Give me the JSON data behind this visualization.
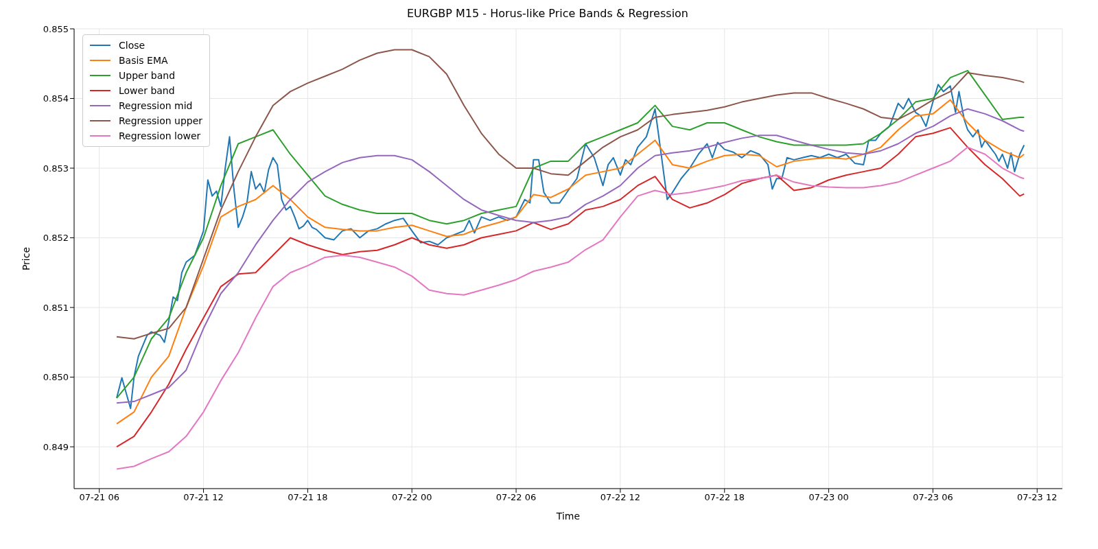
{
  "chart_data": {
    "type": "line",
    "title": "EURGBP M15 - Horus-like Price Bands & Regression",
    "xlabel": "Time",
    "ylabel": "Price",
    "xlim": [
      "--07-21T04:33",
      "--07-23T13:27"
    ],
    "ylim": [
      0.8484,
      0.855
    ],
    "xticks": [
      {
        "value": "--07-21T06:00",
        "label": "07-21 06"
      },
      {
        "value": "--07-21T12:00",
        "label": "07-21 12"
      },
      {
        "value": "--07-21T18:00",
        "label": "07-21 18"
      },
      {
        "value": "--07-22T00:00",
        "label": "07-22 00"
      },
      {
        "value": "--07-22T06:00",
        "label": "07-22 06"
      },
      {
        "value": "--07-22T12:00",
        "label": "07-22 12"
      },
      {
        "value": "--07-22T18:00",
        "label": "07-22 18"
      },
      {
        "value": "--07-23T00:00",
        "label": "07-23 00"
      },
      {
        "value": "--07-23T06:00",
        "label": "07-23 06"
      },
      {
        "value": "--07-23T12:00",
        "label": "07-23 12"
      }
    ],
    "yticks": [
      {
        "value": 0.849,
        "label": "0.849"
      },
      {
        "value": 0.85,
        "label": "0.850"
      },
      {
        "value": 0.851,
        "label": "0.851"
      },
      {
        "value": 0.852,
        "label": "0.852"
      },
      {
        "value": 0.853,
        "label": "0.853"
      },
      {
        "value": 0.854,
        "label": "0.854"
      },
      {
        "value": 0.855,
        "label": "0.855"
      }
    ],
    "grid": true,
    "legend": "top left",
    "x": [
      "--07-21T07:00",
      "--07-21T08:00",
      "--07-21T09:00",
      "--07-21T10:00",
      "--07-21T11:00",
      "--07-21T12:00",
      "--07-21T13:00",
      "--07-21T14:00",
      "--07-21T15:00",
      "--07-21T16:00",
      "--07-21T17:00",
      "--07-21T18:00",
      "--07-21T19:00",
      "--07-21T20:00",
      "--07-21T21:00",
      "--07-21T22:00",
      "--07-21T23:00",
      "--07-22T00:00",
      "--07-22T01:00",
      "--07-22T02:00",
      "--07-22T03:00",
      "--07-22T04:00",
      "--07-22T05:00",
      "--07-22T06:00",
      "--07-22T07:00",
      "--07-22T08:00",
      "--07-22T09:00",
      "--07-22T10:00",
      "--07-22T11:00",
      "--07-22T12:00",
      "--07-22T13:00",
      "--07-22T14:00",
      "--07-22T15:00",
      "--07-22T16:00",
      "--07-22T17:00",
      "--07-22T18:00",
      "--07-22T19:00",
      "--07-22T20:00",
      "--07-22T21:00",
      "--07-22T22:00",
      "--07-22T23:00",
      "--07-23T00:00",
      "--07-23T01:00",
      "--07-23T02:00",
      "--07-23T03:00",
      "--07-23T04:00",
      "--07-23T05:00",
      "--07-23T06:00",
      "--07-23T07:00",
      "--07-23T08:00",
      "--07-23T09:00",
      "--07-23T10:00",
      "--07-23T11:00",
      "--07-23T11:15"
    ],
    "series": [
      {
        "name": "Close",
        "color": "#1f77b4",
        "x": [
          "--07-21T07:00",
          "--07-21T07:18",
          "--07-21T07:48",
          "--07-21T08:00",
          "--07-21T08:15",
          "--07-21T08:45",
          "--07-21T09:00",
          "--07-21T09:30",
          "--07-21T09:45",
          "--07-21T10:00",
          "--07-21T10:15",
          "--07-21T10:30",
          "--07-21T10:45",
          "--07-21T11:00",
          "--07-21T11:30",
          "--07-21T12:00",
          "--07-21T12:15",
          "--07-21T12:30",
          "--07-21T12:45",
          "--07-21T13:00",
          "--07-21T13:15",
          "--07-21T13:30",
          "--07-21T13:45",
          "--07-21T14:00",
          "--07-21T14:15",
          "--07-21T14:30",
          "--07-21T14:45",
          "--07-21T15:00",
          "--07-21T15:15",
          "--07-21T15:30",
          "--07-21T15:45",
          "--07-21T16:00",
          "--07-21T16:15",
          "--07-21T16:30",
          "--07-21T16:45",
          "--07-21T17:00",
          "--07-21T17:15",
          "--07-21T17:30",
          "--07-21T17:45",
          "--07-21T18:00",
          "--07-21T18:15",
          "--07-21T18:30",
          "--07-21T19:00",
          "--07-21T19:30",
          "--07-21T20:00",
          "--07-21T20:30",
          "--07-21T21:00",
          "--07-21T21:30",
          "--07-21T22:00",
          "--07-21T22:30",
          "--07-21T23:00",
          "--07-21T23:30",
          "--07-22T00:00",
          "--07-22T00:30",
          "--07-22T01:00",
          "--07-22T01:30",
          "--07-22T02:00",
          "--07-22T02:30",
          "--07-22T03:00",
          "--07-22T03:18",
          "--07-22T03:36",
          "--07-22T04:00",
          "--07-22T04:30",
          "--07-22T05:00",
          "--07-22T05:30",
          "--07-22T06:00",
          "--07-22T06:30",
          "--07-22T06:48",
          "--07-22T07:00",
          "--07-22T07:18",
          "--07-22T07:36",
          "--07-22T08:00",
          "--07-22T08:30",
          "--07-22T09:00",
          "--07-22T09:30",
          "--07-22T10:00",
          "--07-22T10:30",
          "--07-22T11:00",
          "--07-22T11:18",
          "--07-22T11:36",
          "--07-22T12:00",
          "--07-22T12:18",
          "--07-22T12:36",
          "--07-22T13:00",
          "--07-22T13:30",
          "--07-22T14:00",
          "--07-22T14:18",
          "--07-22T14:42",
          "--07-22T15:00",
          "--07-22T15:30",
          "--07-22T16:00",
          "--07-22T16:30",
          "--07-22T17:00",
          "--07-22T17:18",
          "--07-22T17:36",
          "--07-22T18:00",
          "--07-22T18:30",
          "--07-22T19:00",
          "--07-22T19:30",
          "--07-22T20:00",
          "--07-22T20:30",
          "--07-22T20:45",
          "--07-22T21:00",
          "--07-22T21:18",
          "--07-22T21:36",
          "--07-22T22:00",
          "--07-22T22:30",
          "--07-22T23:00",
          "--07-22T23:30",
          "--07-23T00:00",
          "--07-23T00:30",
          "--07-23T01:00",
          "--07-23T01:30",
          "--07-23T02:00",
          "--07-23T02:18",
          "--07-23T02:42",
          "--07-23T03:00",
          "--07-23T03:30",
          "--07-23T04:00",
          "--07-23T04:18",
          "--07-23T04:36",
          "--07-23T05:00",
          "--07-23T05:18",
          "--07-23T05:36",
          "--07-23T06:00",
          "--07-23T06:18",
          "--07-23T06:36",
          "--07-23T07:00",
          "--07-23T07:18",
          "--07-23T07:30",
          "--07-23T07:48",
          "--07-23T08:00",
          "--07-23T08:18",
          "--07-23T08:36",
          "--07-23T08:48",
          "--07-23T09:00",
          "--07-23T09:18",
          "--07-23T09:36",
          "--07-23T09:48",
          "--07-23T10:00",
          "--07-23T10:18",
          "--07-23T10:30",
          "--07-23T10:42",
          "--07-23T11:00",
          "--07-23T11:15"
        ],
        "values": [
          0.8497,
          0.84999,
          0.84955,
          0.85,
          0.8503,
          0.8506,
          0.85065,
          0.8506,
          0.8505,
          0.8508,
          0.85115,
          0.8511,
          0.8515,
          0.85165,
          0.85175,
          0.8521,
          0.85283,
          0.8526,
          0.85267,
          0.85245,
          0.853,
          0.85345,
          0.8527,
          0.85215,
          0.8523,
          0.8525,
          0.85295,
          0.8527,
          0.85278,
          0.85265,
          0.85298,
          0.85315,
          0.85305,
          0.85255,
          0.8524,
          0.85245,
          0.8523,
          0.85213,
          0.85217,
          0.85225,
          0.85215,
          0.85212,
          0.852,
          0.85197,
          0.8521,
          0.85213,
          0.852,
          0.8521,
          0.85213,
          0.8522,
          0.85225,
          0.85228,
          0.8521,
          0.85193,
          0.85195,
          0.8519,
          0.852,
          0.85205,
          0.8521,
          0.85225,
          0.85207,
          0.8523,
          0.85225,
          0.8523,
          0.85225,
          0.8523,
          0.85255,
          0.8525,
          0.85312,
          0.85312,
          0.85265,
          0.8525,
          0.8525,
          0.85268,
          0.85285,
          0.85335,
          0.85315,
          0.85275,
          0.85305,
          0.85315,
          0.8529,
          0.85312,
          0.85305,
          0.8533,
          0.85345,
          0.85385,
          0.8533,
          0.85255,
          0.85265,
          0.85285,
          0.853,
          0.8532,
          0.85335,
          0.85315,
          0.85337,
          0.85327,
          0.85323,
          0.85315,
          0.85325,
          0.8532,
          0.85305,
          0.8527,
          0.85285,
          0.85285,
          0.85315,
          0.85312,
          0.85315,
          0.85318,
          0.85315,
          0.8532,
          0.85315,
          0.8532,
          0.85307,
          0.85305,
          0.8534,
          0.8534,
          0.8535,
          0.8536,
          0.85393,
          0.85385,
          0.854,
          0.8538,
          0.85375,
          0.8536,
          0.85395,
          0.8542,
          0.8541,
          0.85418,
          0.8538,
          0.8541,
          0.8537,
          0.85355,
          0.85345,
          0.85355,
          0.8533,
          0.8534,
          0.8533,
          0.8532,
          0.8531,
          0.8532,
          0.853,
          0.85322,
          0.85295,
          0.8532,
          0.85333
        ]
      },
      {
        "name": "Basis EMA",
        "color": "#ff7f0e",
        "values": [
          0.84933,
          0.8495,
          0.85,
          0.8503,
          0.851,
          0.8516,
          0.8523,
          0.85245,
          0.85255,
          0.85275,
          0.85255,
          0.8523,
          0.85215,
          0.85212,
          0.8521,
          0.8521,
          0.85215,
          0.85218,
          0.8521,
          0.85202,
          0.85205,
          0.85215,
          0.85222,
          0.8523,
          0.85262,
          0.85258,
          0.8527,
          0.8529,
          0.85295,
          0.853,
          0.8532,
          0.8534,
          0.85305,
          0.853,
          0.8531,
          0.85318,
          0.8532,
          0.85318,
          0.85302,
          0.8531,
          0.85313,
          0.85315,
          0.85313,
          0.8532,
          0.8533,
          0.85355,
          0.85375,
          0.85378,
          0.85398,
          0.85365,
          0.8534,
          0.85325,
          0.85315,
          0.8532
        ]
      },
      {
        "name": "Upper band",
        "color": "#2ca02c",
        "values": [
          0.8497,
          0.85,
          0.85055,
          0.85085,
          0.8515,
          0.852,
          0.85275,
          0.85335,
          0.85345,
          0.85355,
          0.8532,
          0.8529,
          0.8526,
          0.85248,
          0.8524,
          0.85235,
          0.85235,
          0.85235,
          0.85225,
          0.8522,
          0.85225,
          0.85235,
          0.8524,
          0.85245,
          0.853,
          0.8531,
          0.8531,
          0.85335,
          0.85345,
          0.85355,
          0.85365,
          0.8539,
          0.8536,
          0.85355,
          0.85365,
          0.85365,
          0.85355,
          0.85345,
          0.85338,
          0.85333,
          0.85333,
          0.85333,
          0.85333,
          0.85335,
          0.8535,
          0.8537,
          0.85395,
          0.854,
          0.8543,
          0.8544,
          0.85405,
          0.8537,
          0.85373,
          0.85373
        ]
      },
      {
        "name": "Lower band",
        "color": "#d62728",
        "values": [
          0.849,
          0.84915,
          0.8495,
          0.8499,
          0.8504,
          0.85085,
          0.8513,
          0.85148,
          0.8515,
          0.85175,
          0.852,
          0.8519,
          0.85182,
          0.85176,
          0.8518,
          0.85182,
          0.8519,
          0.852,
          0.8519,
          0.85185,
          0.8519,
          0.852,
          0.85205,
          0.8521,
          0.85222,
          0.85212,
          0.8522,
          0.8524,
          0.85245,
          0.85255,
          0.85275,
          0.85288,
          0.85255,
          0.85243,
          0.8525,
          0.85262,
          0.85278,
          0.85285,
          0.8529,
          0.85268,
          0.85272,
          0.85283,
          0.8529,
          0.85295,
          0.853,
          0.8532,
          0.85345,
          0.8535,
          0.85358,
          0.8533,
          0.85305,
          0.85285,
          0.8526,
          0.85263
        ]
      },
      {
        "name": "Regression mid",
        "color": "#9467bd",
        "values": [
          0.84963,
          0.84965,
          0.84975,
          0.84985,
          0.8501,
          0.8507,
          0.8512,
          0.8515,
          0.8519,
          0.85225,
          0.85255,
          0.8528,
          0.85295,
          0.85308,
          0.85315,
          0.85318,
          0.85318,
          0.85312,
          0.85295,
          0.85275,
          0.85255,
          0.8524,
          0.85232,
          0.85225,
          0.85222,
          0.85225,
          0.8523,
          0.85248,
          0.8526,
          0.85275,
          0.853,
          0.85318,
          0.85322,
          0.85325,
          0.8533,
          0.85337,
          0.85343,
          0.85347,
          0.85347,
          0.8534,
          0.85333,
          0.85327,
          0.85322,
          0.8532,
          0.85325,
          0.85335,
          0.8535,
          0.8536,
          0.85375,
          0.85385,
          0.85378,
          0.85368,
          0.85355,
          0.85353
        ]
      },
      {
        "name": "Regression upper",
        "color": "#8c564b",
        "values": [
          0.85058,
          0.85055,
          0.85063,
          0.8507,
          0.851,
          0.8517,
          0.8524,
          0.85295,
          0.85345,
          0.8539,
          0.8541,
          0.85422,
          0.85432,
          0.85442,
          0.85455,
          0.85465,
          0.8547,
          0.8547,
          0.8546,
          0.85435,
          0.8539,
          0.8535,
          0.8532,
          0.853,
          0.853,
          0.85292,
          0.8529,
          0.8531,
          0.8533,
          0.85345,
          0.85355,
          0.85373,
          0.85377,
          0.8538,
          0.85383,
          0.85388,
          0.85395,
          0.854,
          0.85405,
          0.85408,
          0.85408,
          0.854,
          0.85393,
          0.85385,
          0.85373,
          0.8537,
          0.85383,
          0.85398,
          0.8541,
          0.85437,
          0.85433,
          0.8543,
          0.85425,
          0.85423
        ]
      },
      {
        "name": "Regression lower",
        "color": "#e377c2",
        "values": [
          0.84868,
          0.84872,
          0.84883,
          0.84893,
          0.84915,
          0.8495,
          0.84995,
          0.85035,
          0.85085,
          0.8513,
          0.8515,
          0.8516,
          0.85172,
          0.85175,
          0.85172,
          0.85165,
          0.85158,
          0.85145,
          0.85125,
          0.8512,
          0.85118,
          0.85125,
          0.85132,
          0.8514,
          0.85152,
          0.85158,
          0.85165,
          0.85183,
          0.85197,
          0.8523,
          0.8526,
          0.85268,
          0.85262,
          0.85265,
          0.8527,
          0.85275,
          0.85282,
          0.85285,
          0.8529,
          0.8528,
          0.85275,
          0.85273,
          0.85272,
          0.85272,
          0.85275,
          0.8528,
          0.8529,
          0.853,
          0.8531,
          0.8533,
          0.8532,
          0.853,
          0.85287,
          0.85285
        ]
      }
    ]
  }
}
